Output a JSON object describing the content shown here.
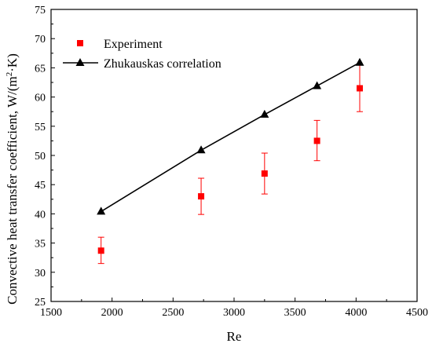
{
  "chart_data": {
    "type": "scatter",
    "xlabel": "Re",
    "ylabel": "Convective heat transfer coefficient, W/(m²·K)",
    "ylabel_parts": {
      "pre": "Convective heat transfer coefficient, W/(m",
      "sup": "2",
      "post": "·K)"
    },
    "xlim": [
      1500,
      4500
    ],
    "ylim": [
      25,
      75
    ],
    "xticks": [
      1500,
      2000,
      2500,
      3000,
      3500,
      4000,
      4500
    ],
    "yticks": [
      25,
      30,
      35,
      40,
      45,
      50,
      55,
      60,
      65,
      70,
      75
    ],
    "grid": false,
    "legend_position": "top-left",
    "series": [
      {
        "name": "Experiment",
        "marker": "square",
        "color": "#ff0000",
        "line": false,
        "x": [
          1910,
          2730,
          3250,
          3680,
          4030
        ],
        "y": [
          33.7,
          43.0,
          46.9,
          52.5,
          61.5
        ],
        "err_low": [
          31.5,
          39.9,
          43.4,
          49.1,
          57.5
        ],
        "err_high": [
          36.0,
          46.1,
          50.4,
          56.0,
          65.5
        ]
      },
      {
        "name": "Zhukauskas correlation",
        "marker": "triangle",
        "color": "#000000",
        "line": true,
        "x": [
          1910,
          2730,
          3250,
          3680,
          4030
        ],
        "y": [
          40.4,
          50.9,
          57.0,
          61.9,
          65.9
        ]
      }
    ]
  }
}
